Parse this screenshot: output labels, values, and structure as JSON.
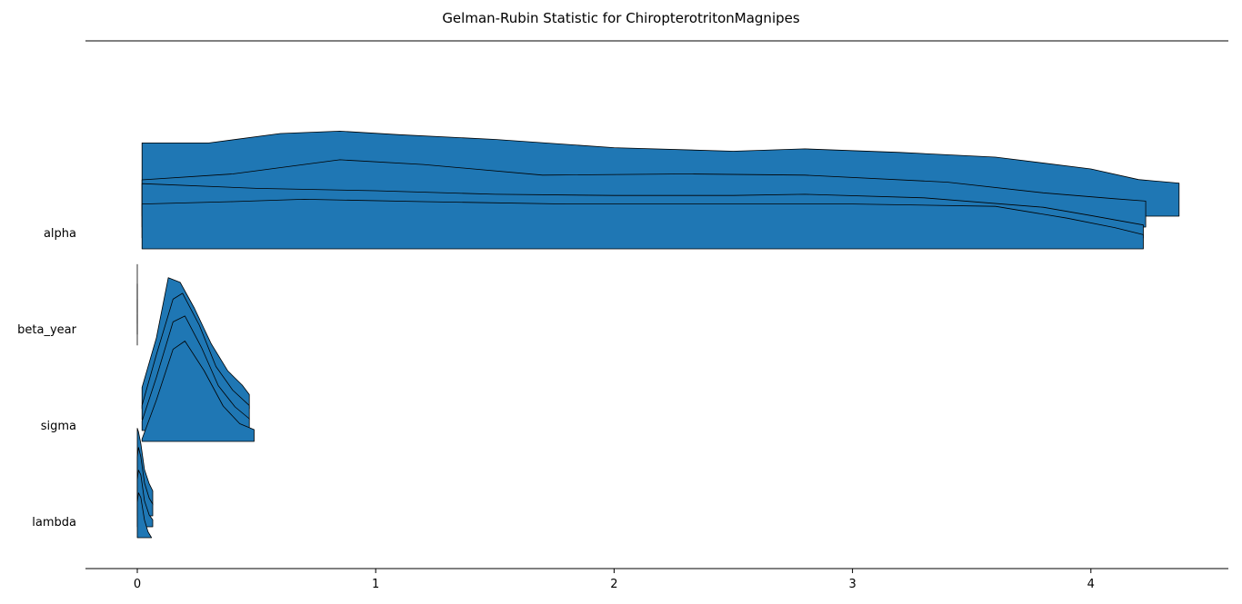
{
  "chart_data": {
    "type": "ridgeline",
    "title": "Gelman-Rubin Statistic for ChiropterotritonMagnipes",
    "xlabel": "",
    "ylabel": "",
    "xlim": [
      -0.22,
      4.57
    ],
    "x_ticks": [
      "0",
      "1",
      "2",
      "3",
      "4"
    ],
    "x_tick_values": [
      0,
      1,
      2,
      3,
      4
    ],
    "grid": false,
    "legend": "none",
    "fill_color": "#1f77b4",
    "edge_color": "#000000",
    "categories": [
      "alpha",
      "beta_year",
      "sigma",
      "lambda"
    ],
    "distributions": [
      {
        "parameter": "alpha",
        "x_range": [
          0.02,
          4.37
        ],
        "chains": [
          {
            "x_end": 4.37,
            "points": [
              [
                0.02,
                0.62
              ],
              [
                0.3,
                0.62
              ],
              [
                0.6,
                0.7
              ],
              [
                0.85,
                0.72
              ],
              [
                1.1,
                0.69
              ],
              [
                1.5,
                0.65
              ],
              [
                2.0,
                0.58
              ],
              [
                2.5,
                0.55
              ],
              [
                2.8,
                0.57
              ],
              [
                3.2,
                0.54
              ],
              [
                3.6,
                0.5
              ],
              [
                4.0,
                0.4
              ],
              [
                4.2,
                0.31
              ],
              [
                4.37,
                0.28
              ]
            ]
          },
          {
            "x_end": 4.23,
            "points": [
              [
                0.02,
                0.4
              ],
              [
                0.4,
                0.45
              ],
              [
                0.85,
                0.57
              ],
              [
                1.2,
                0.53
              ],
              [
                1.7,
                0.44
              ],
              [
                2.3,
                0.45
              ],
              [
                2.8,
                0.44
              ],
              [
                3.4,
                0.38
              ],
              [
                3.8,
                0.29
              ],
              [
                4.1,
                0.24
              ],
              [
                4.23,
                0.22
              ]
            ]
          },
          {
            "x_end": 4.22,
            "points": [
              [
                0.02,
                0.46
              ],
              [
                0.5,
                0.42
              ],
              [
                1.0,
                0.4
              ],
              [
                1.5,
                0.37
              ],
              [
                2.0,
                0.36
              ],
              [
                2.5,
                0.36
              ],
              [
                2.8,
                0.37
              ],
              [
                3.3,
                0.34
              ],
              [
                3.8,
                0.26
              ],
              [
                4.0,
                0.19
              ],
              [
                4.22,
                0.11
              ]
            ]
          },
          {
            "x_end": 4.22,
            "points": [
              [
                0.02,
                0.38
              ],
              [
                0.4,
                0.4
              ],
              [
                0.7,
                0.42
              ],
              [
                1.2,
                0.4
              ],
              [
                1.8,
                0.38
              ],
              [
                2.5,
                0.38
              ],
              [
                3.0,
                0.38
              ],
              [
                3.6,
                0.36
              ],
              [
                3.9,
                0.26
              ],
              [
                4.1,
                0.18
              ],
              [
                4.22,
                0.12
              ]
            ]
          }
        ]
      },
      {
        "parameter": "beta_year",
        "x_range": [
          0.0,
          0.006
        ],
        "chains": [
          {
            "x_end": 0.006,
            "points": [
              [
                0.0,
                0.0
              ],
              [
                0.002,
                0.3
              ],
              [
                0.004,
                1.1
              ],
              [
                0.006,
                0.4
              ]
            ]
          },
          {
            "x_end": 0.006,
            "points": [
              [
                0.0,
                0.0
              ],
              [
                0.002,
                0.2
              ],
              [
                0.004,
                0.9
              ],
              [
                0.006,
                0.3
              ]
            ]
          },
          {
            "x_end": 0.006,
            "points": [
              [
                0.0,
                0.0
              ],
              [
                0.002,
                0.2
              ],
              [
                0.004,
                0.8
              ],
              [
                0.006,
                0.2
              ]
            ]
          },
          {
            "x_end": 0.006,
            "points": [
              [
                0.0,
                0.0
              ],
              [
                0.002,
                0.1
              ],
              [
                0.004,
                0.7
              ],
              [
                0.006,
                0.1
              ]
            ]
          }
        ]
      },
      {
        "parameter": "sigma",
        "x_range": [
          0.02,
          0.49
        ],
        "chains": [
          {
            "x_end": 0.47,
            "points": [
              [
                0.02,
                0.18
              ],
              [
                0.08,
                0.6
              ],
              [
                0.13,
                1.11
              ],
              [
                0.18,
                1.07
              ],
              [
                0.24,
                0.85
              ],
              [
                0.31,
                0.55
              ],
              [
                0.38,
                0.32
              ],
              [
                0.44,
                0.2
              ],
              [
                0.47,
                0.12
              ]
            ]
          },
          {
            "x_end": 0.47,
            "points": [
              [
                0.02,
                0.12
              ],
              [
                0.08,
                0.55
              ],
              [
                0.15,
                1.02
              ],
              [
                0.19,
                1.07
              ],
              [
                0.26,
                0.8
              ],
              [
                0.33,
                0.45
              ],
              [
                0.4,
                0.25
              ],
              [
                0.47,
                0.12
              ]
            ]
          },
          {
            "x_end": 0.47,
            "points": [
              [
                0.02,
                0.08
              ],
              [
                0.08,
                0.45
              ],
              [
                0.15,
                0.92
              ],
              [
                0.2,
                0.97
              ],
              [
                0.27,
                0.7
              ],
              [
                0.34,
                0.38
              ],
              [
                0.41,
                0.2
              ],
              [
                0.47,
                0.1
              ]
            ]
          },
          {
            "x_end": 0.49,
            "points": [
              [
                0.02,
                0.02
              ],
              [
                0.08,
                0.35
              ],
              [
                0.15,
                0.78
              ],
              [
                0.2,
                0.85
              ],
              [
                0.28,
                0.6
              ],
              [
                0.36,
                0.3
              ],
              [
                0.43,
                0.15
              ],
              [
                0.49,
                0.1
              ]
            ]
          }
        ]
      },
      {
        "parameter": "lambda",
        "x_range": [
          0.0,
          0.065
        ],
        "chains": [
          {
            "x_end": 0.065,
            "points": [
              [
                0.0,
                0.65
              ],
              [
                0.005,
                0.62
              ],
              [
                0.015,
                0.52
              ],
              [
                0.03,
                0.3
              ],
              [
                0.05,
                0.18
              ],
              [
                0.065,
                0.12
              ]
            ]
          },
          {
            "x_end": 0.065,
            "points": [
              [
                0.0,
                0.5
              ],
              [
                0.005,
                0.58
              ],
              [
                0.015,
                0.5
              ],
              [
                0.03,
                0.28
              ],
              [
                0.05,
                0.15
              ],
              [
                0.065,
                0.1
              ]
            ]
          },
          {
            "x_end": 0.065,
            "points": [
              [
                0.0,
                0.4
              ],
              [
                0.005,
                0.48
              ],
              [
                0.015,
                0.44
              ],
              [
                0.03,
                0.22
              ],
              [
                0.05,
                0.1
              ],
              [
                0.065,
                0.06
              ]
            ]
          },
          {
            "x_end": 0.06,
            "points": [
              [
                0.0,
                0.3
              ],
              [
                0.005,
                0.38
              ],
              [
                0.015,
                0.34
              ],
              [
                0.03,
                0.15
              ],
              [
                0.045,
                0.05
              ],
              [
                0.06,
                0.0
              ]
            ]
          }
        ]
      }
    ]
  }
}
